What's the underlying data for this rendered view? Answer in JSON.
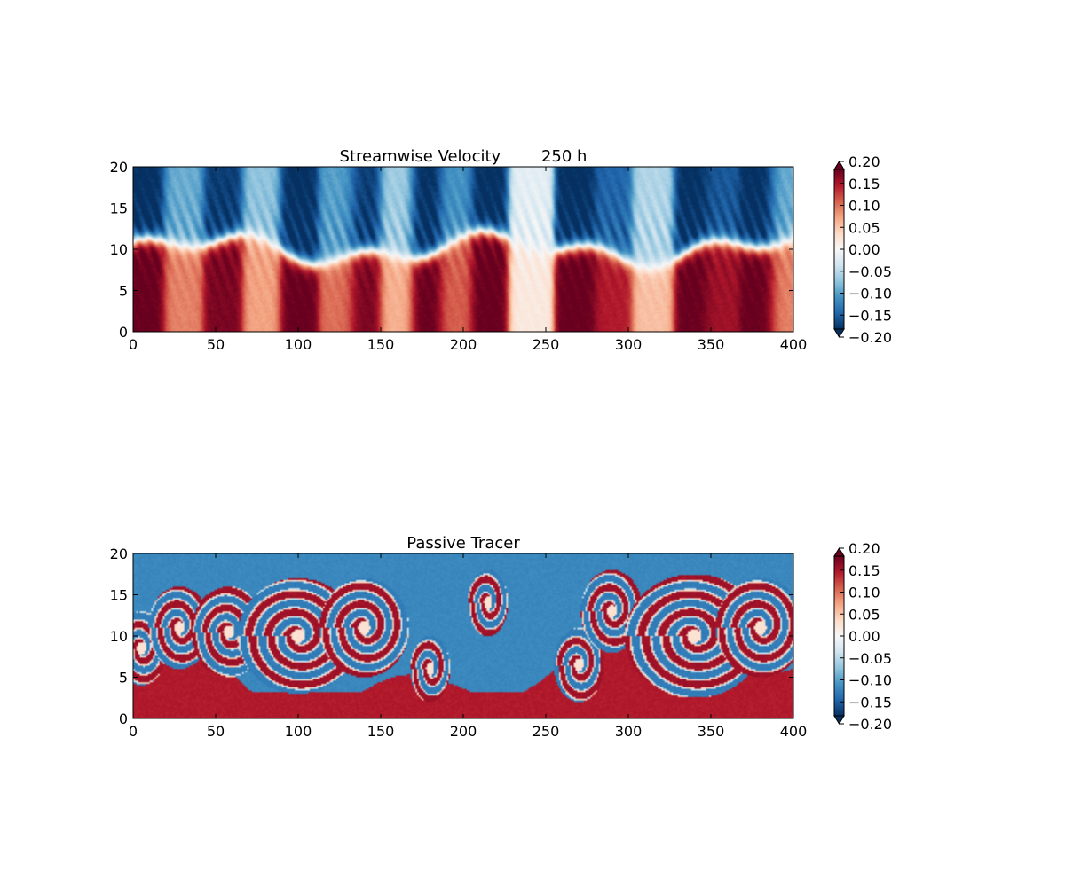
{
  "chart_data": [
    {
      "type": "heatmap",
      "title": "Streamwise Velocity        250 h",
      "xlabel": "",
      "ylabel": "",
      "xlim": [
        0,
        400
      ],
      "ylim": [
        0,
        20
      ],
      "xticks": [
        0,
        50,
        100,
        150,
        200,
        250,
        300,
        350,
        400
      ],
      "yticks": [
        0,
        5,
        10,
        15,
        20
      ],
      "colormap": "RdBu_r",
      "colorbar": {
        "min": -0.2,
        "max": 0.2,
        "extend": "both",
        "ticks": [
          "0.20",
          "0.15",
          "0.10",
          "0.05",
          "0.00",
          "−0.05",
          "−0.10",
          "−0.15",
          "−0.20"
        ]
      },
      "field": {
        "description": "lower half (y<10) positive, upper half (y>10) negative, banded in x",
        "band_centers_x": [
          8,
          30,
          55,
          78,
          100,
          125,
          140,
          160,
          178,
          195,
          215,
          240,
          270,
          290,
          315,
          340,
          355,
          380,
          395
        ],
        "band_amplitudes": [
          0.2,
          0.1,
          0.19,
          0.08,
          0.2,
          0.11,
          0.19,
          0.07,
          0.2,
          0.12,
          0.2,
          0.02,
          0.2,
          0.16,
          0.06,
          0.2,
          0.17,
          0.2,
          0.1
        ]
      }
    },
    {
      "type": "heatmap",
      "title": "Passive Tracer",
      "xlabel": "",
      "ylabel": "",
      "xlim": [
        0,
        400
      ],
      "ylim": [
        0,
        20
      ],
      "xticks": [
        0,
        50,
        100,
        150,
        200,
        250,
        300,
        350,
        400
      ],
      "yticks": [
        0,
        5,
        10,
        15,
        20
      ],
      "colormap": "RdBu_r",
      "colorbar": {
        "min": -0.2,
        "max": 0.2,
        "extend": "both",
        "ticks": [
          "0.20",
          "0.15",
          "0.10",
          "0.05",
          "0.00",
          "−0.05",
          "−0.10",
          "−0.15",
          "−0.20"
        ]
      },
      "field": {
        "background_upper": -0.13,
        "background_lower": 0.16,
        "vortices": [
          {
            "x": 5,
            "y": 8.5,
            "radius": 4.5
          },
          {
            "x": 28,
            "y": 11,
            "radius": 5.0
          },
          {
            "x": 58,
            "y": 10.5,
            "radius": 5.5
          },
          {
            "x": 100,
            "y": 10,
            "radius": 7.0
          },
          {
            "x": 140,
            "y": 11,
            "radius": 6.0
          },
          {
            "x": 180,
            "y": 6,
            "radius": 4.0
          },
          {
            "x": 215,
            "y": 14,
            "radius": 4.0
          },
          {
            "x": 270,
            "y": 6.5,
            "radius": 4.5
          },
          {
            "x": 290,
            "y": 13,
            "radius": 5.0
          },
          {
            "x": 340,
            "y": 10,
            "radius": 7.5
          },
          {
            "x": 380,
            "y": 11,
            "radius": 6.0
          }
        ]
      }
    }
  ]
}
